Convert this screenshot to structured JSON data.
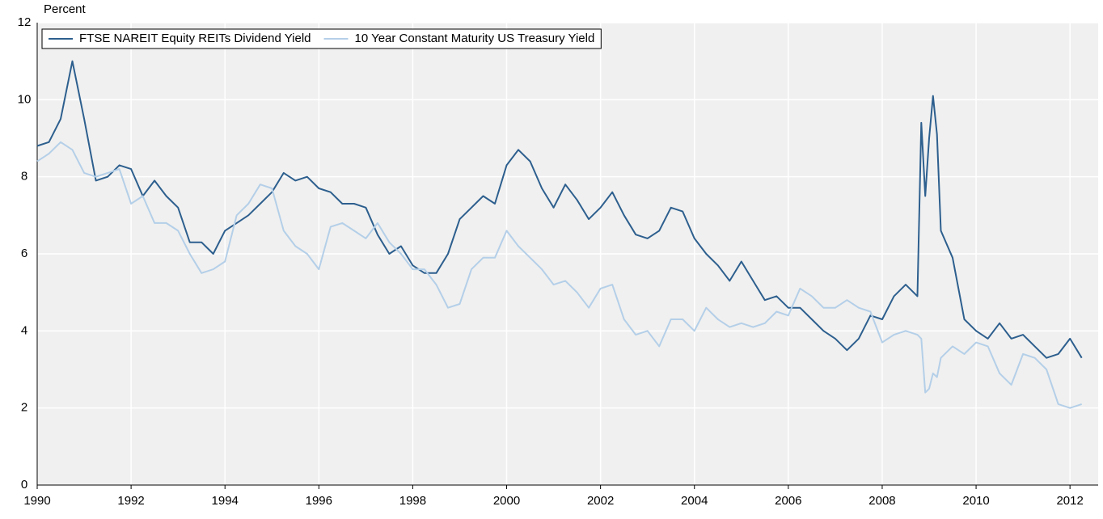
{
  "chart_data": {
    "type": "line",
    "y_label": "Percent",
    "x": [
      1990.0,
      1990.25,
      1990.5,
      1990.75,
      1991.0,
      1991.25,
      1991.5,
      1991.75,
      1992.0,
      1992.25,
      1992.5,
      1992.75,
      1993.0,
      1993.25,
      1993.5,
      1993.75,
      1994.0,
      1994.25,
      1994.5,
      1994.75,
      1995.0,
      1995.25,
      1995.5,
      1995.75,
      1996.0,
      1996.25,
      1996.5,
      1996.75,
      1997.0,
      1997.25,
      1997.5,
      1997.75,
      1998.0,
      1998.25,
      1998.5,
      1998.75,
      1999.0,
      1999.25,
      1999.5,
      1999.75,
      2000.0,
      2000.25,
      2000.5,
      2000.75,
      2001.0,
      2001.25,
      2001.5,
      2001.75,
      2002.0,
      2002.25,
      2002.5,
      2002.75,
      2003.0,
      2003.25,
      2003.5,
      2003.75,
      2004.0,
      2004.25,
      2004.5,
      2004.75,
      2005.0,
      2005.25,
      2005.5,
      2005.75,
      2006.0,
      2006.25,
      2006.5,
      2006.75,
      2007.0,
      2007.25,
      2007.5,
      2007.75,
      2008.0,
      2008.25,
      2008.5,
      2008.75,
      2008.833,
      2008.917,
      2009.0,
      2009.083,
      2009.167,
      2009.25,
      2009.5,
      2009.75,
      2010.0,
      2010.25,
      2010.5,
      2010.75,
      2011.0,
      2011.25,
      2011.5,
      2011.75,
      2012.0,
      2012.25
    ],
    "series": [
      {
        "name": "FTSE NAREIT Equity REITs Dividend Yield",
        "color": "#2d5f8e",
        "values": [
          8.8,
          8.9,
          9.5,
          11.0,
          9.5,
          7.9,
          8.0,
          8.3,
          8.2,
          7.5,
          7.9,
          7.5,
          7.2,
          6.3,
          6.3,
          6.0,
          6.6,
          6.8,
          7.0,
          7.3,
          7.6,
          8.1,
          7.9,
          8.0,
          7.7,
          7.6,
          7.3,
          7.3,
          7.2,
          6.5,
          6.0,
          6.2,
          5.7,
          5.5,
          5.5,
          6.0,
          6.9,
          7.2,
          7.5,
          7.3,
          8.3,
          8.7,
          8.4,
          7.7,
          7.2,
          7.8,
          7.4,
          6.9,
          7.2,
          7.6,
          7.0,
          6.5,
          6.4,
          6.6,
          7.2,
          7.1,
          6.4,
          6.0,
          5.7,
          5.3,
          5.8,
          5.3,
          4.8,
          4.9,
          4.6,
          4.6,
          4.3,
          4.0,
          3.8,
          3.5,
          3.8,
          4.4,
          4.3,
          4.9,
          5.2,
          4.9,
          9.4,
          7.5,
          9.0,
          10.1,
          9.1,
          6.6,
          5.9,
          4.3,
          4.0,
          3.8,
          4.2,
          3.8,
          3.9,
          3.6,
          3.3,
          3.4,
          3.8,
          3.3
        ]
      },
      {
        "name": "10 Year Constant Maturity US Treasury Yield",
        "color": "#b4cfe8",
        "values": [
          8.4,
          8.6,
          8.9,
          8.7,
          8.1,
          8.0,
          8.1,
          8.2,
          7.3,
          7.5,
          6.8,
          6.8,
          6.6,
          6.0,
          5.5,
          5.6,
          5.8,
          7.0,
          7.3,
          7.8,
          7.7,
          6.6,
          6.2,
          6.0,
          5.6,
          6.7,
          6.8,
          6.6,
          6.4,
          6.8,
          6.3,
          6.0,
          5.6,
          5.6,
          5.2,
          4.6,
          4.7,
          5.6,
          5.9,
          5.9,
          6.6,
          6.2,
          5.9,
          5.6,
          5.2,
          5.3,
          5.0,
          4.6,
          5.1,
          5.2,
          4.3,
          3.9,
          4.0,
          3.6,
          4.3,
          4.3,
          4.0,
          4.6,
          4.3,
          4.1,
          4.2,
          4.1,
          4.2,
          4.5,
          4.4,
          5.1,
          4.9,
          4.6,
          4.6,
          4.8,
          4.6,
          4.5,
          3.7,
          3.9,
          4.0,
          3.9,
          3.8,
          2.4,
          2.5,
          2.9,
          2.8,
          3.3,
          3.6,
          3.4,
          3.7,
          3.6,
          2.9,
          2.6,
          3.4,
          3.3,
          3.0,
          2.1,
          2.0,
          2.1
        ]
      }
    ],
    "xlim": [
      1990,
      2012.6
    ],
    "xticks": [
      1990,
      1992,
      1994,
      1996,
      1998,
      2000,
      2002,
      2004,
      2006,
      2008,
      2010,
      2012
    ],
    "ylim": [
      0,
      12
    ],
    "yticks": [
      0,
      2,
      4,
      6,
      8,
      10,
      12
    ],
    "grid": true,
    "legend": "top-left"
  }
}
